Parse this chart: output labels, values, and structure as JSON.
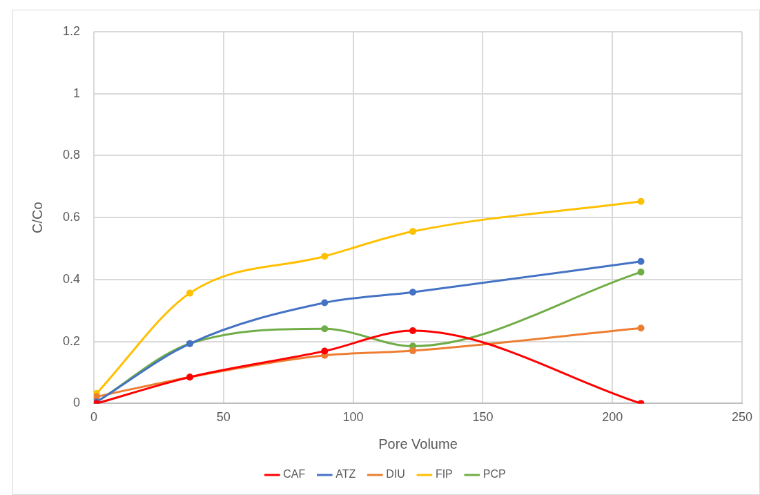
{
  "chart_data": {
    "type": "line",
    "xlabel": "Pore Volume",
    "ylabel": "C/Co",
    "x": [
      1,
      37,
      89,
      123,
      211
    ],
    "xlim": [
      0,
      250
    ],
    "xticks": [
      0,
      50,
      100,
      150,
      200,
      250
    ],
    "ylim": [
      0,
      1.2
    ],
    "yticks": [
      0,
      0.2,
      0.4,
      0.6,
      0.8,
      1,
      1.2
    ],
    "grid": true,
    "legend": "bottom",
    "marker": "circle",
    "line_style": "solid",
    "series": [
      {
        "name": "CAF",
        "color": "#ff0000",
        "values": [
          0,
          0.085,
          0.169,
          0.235,
          0
        ]
      },
      {
        "name": "ATZ",
        "color": "#4472c4",
        "values": [
          0.005,
          0.193,
          0.325,
          0.359,
          0.458
        ]
      },
      {
        "name": "DIU",
        "color": "#ed7d31",
        "values": [
          0.022,
          0.085,
          0.155,
          0.17,
          0.243
        ]
      },
      {
        "name": "FIP",
        "color": "#ffc000",
        "values": [
          0.032,
          0.356,
          0.475,
          0.555,
          0.652
        ]
      },
      {
        "name": "PCP",
        "color": "#70ad47",
        "values": [
          0.005,
          0.193,
          0.241,
          0.185,
          0.424
        ]
      }
    ]
  }
}
